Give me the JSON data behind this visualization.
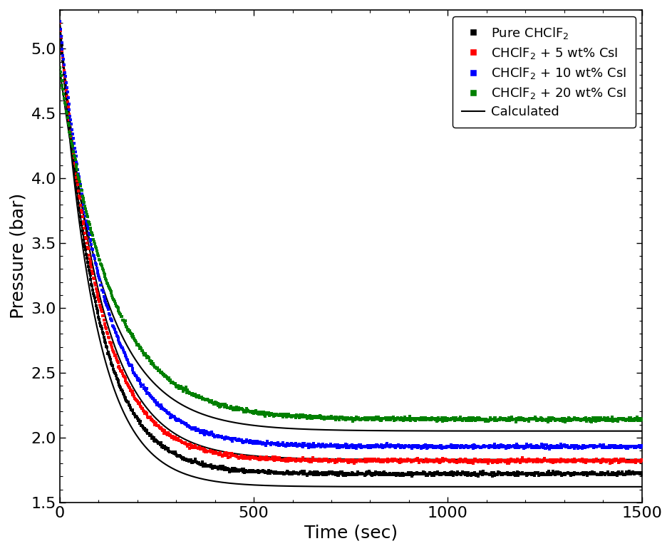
{
  "title": "",
  "xlabel": "Time (sec)",
  "ylabel": "Pressure (bar)",
  "xlim": [
    0,
    1500
  ],
  "ylim": [
    1.5,
    5.3
  ],
  "yticks": [
    1.5,
    2.0,
    2.5,
    3.0,
    3.5,
    4.0,
    4.5,
    5.0
  ],
  "xticks": [
    0,
    500,
    1000,
    1500
  ],
  "series": [
    {
      "label": "Pure CHClF$_2$",
      "color": "#000000",
      "p0": 5.2,
      "p_eq": 1.72,
      "tau": 95,
      "calc_p_eq": 1.62,
      "calc_tau": 90
    },
    {
      "label": "CHClF$_2$ + 5 wt% CsI",
      "color": "#ff0000",
      "p0": 5.2,
      "p_eq": 1.82,
      "tau": 100,
      "calc_p_eq": 1.72,
      "calc_tau": 95
    },
    {
      "label": "CHClF$_2$ + 10 wt% CsI",
      "color": "#0000ff",
      "p0": 5.2,
      "p_eq": 1.93,
      "tau": 110,
      "calc_p_eq": 1.83,
      "calc_tau": 105
    },
    {
      "label": "CHClF$_2$ + 20 wt% CsI",
      "color": "#008000",
      "p0": 4.85,
      "p_eq": 2.14,
      "tau": 130,
      "calc_p_eq": 2.05,
      "calc_tau": 120
    }
  ],
  "calc_label": "Calculated",
  "calc_color": "#000000",
  "background_color": "#ffffff",
  "legend_loc": "upper right",
  "xlabel_fontsize": 18,
  "ylabel_fontsize": 18,
  "tick_fontsize": 16,
  "legend_fontsize": 13,
  "markersize": 2.5
}
